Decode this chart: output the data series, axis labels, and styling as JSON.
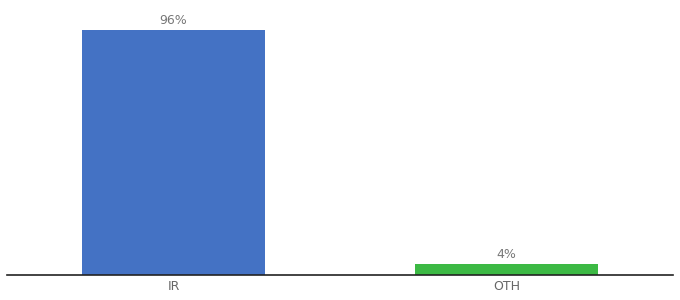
{
  "categories": [
    "IR",
    "OTH"
  ],
  "values": [
    96,
    4
  ],
  "bar_colors": [
    "#4472c4",
    "#3cb944"
  ],
  "label_texts": [
    "96%",
    "4%"
  ],
  "background_color": "#ffffff",
  "ylim": [
    0,
    105
  ],
  "label_fontsize": 9,
  "tick_fontsize": 9,
  "bar_width": 0.55,
  "xlim": [
    -0.5,
    1.5
  ],
  "x_positions": [
    0,
    1
  ]
}
